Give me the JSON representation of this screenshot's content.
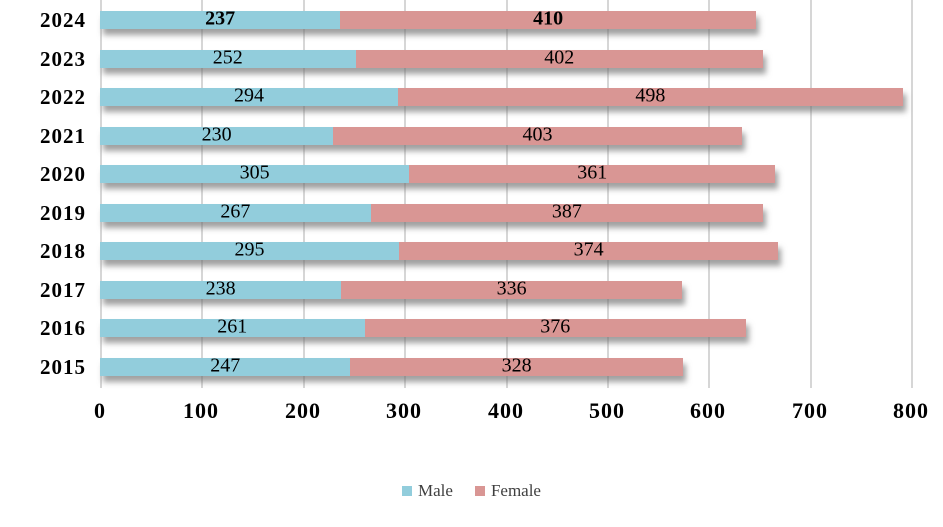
{
  "chart_data": {
    "type": "bar",
    "orientation": "horizontal",
    "stacked": true,
    "categories": [
      "2024",
      "2023",
      "2022",
      "2021",
      "2020",
      "2019",
      "2018",
      "2017",
      "2016",
      "2015"
    ],
    "series": [
      {
        "name": "Male",
        "color": "#92CDDC",
        "values": [
          237,
          252,
          294,
          230,
          305,
          267,
          295,
          238,
          261,
          247
        ]
      },
      {
        "name": "Female",
        "color": "#D99694",
        "values": [
          410,
          402,
          498,
          403,
          361,
          387,
          374,
          336,
          376,
          328
        ]
      }
    ],
    "x_ticks": [
      0,
      100,
      200,
      300,
      400,
      500,
      600,
      700,
      800
    ],
    "xlim": [
      0,
      800
    ],
    "title": "",
    "xlabel": "",
    "ylabel": "",
    "grid": true,
    "legend_position": "bottom",
    "bold_categories": [
      "2024"
    ]
  },
  "legend": {
    "items": [
      {
        "label": "Male",
        "color": "#92CDDC"
      },
      {
        "label": "Female",
        "color": "#D99694"
      }
    ]
  },
  "colors": {
    "male_bar": "#92CDDC",
    "female_bar": "#D99694",
    "gridline": "#D6D6D6",
    "value_label_text": "#000000",
    "axis_text": "#000000",
    "legend_text": "#3F3F3F",
    "background": "#FFFFFF"
  }
}
